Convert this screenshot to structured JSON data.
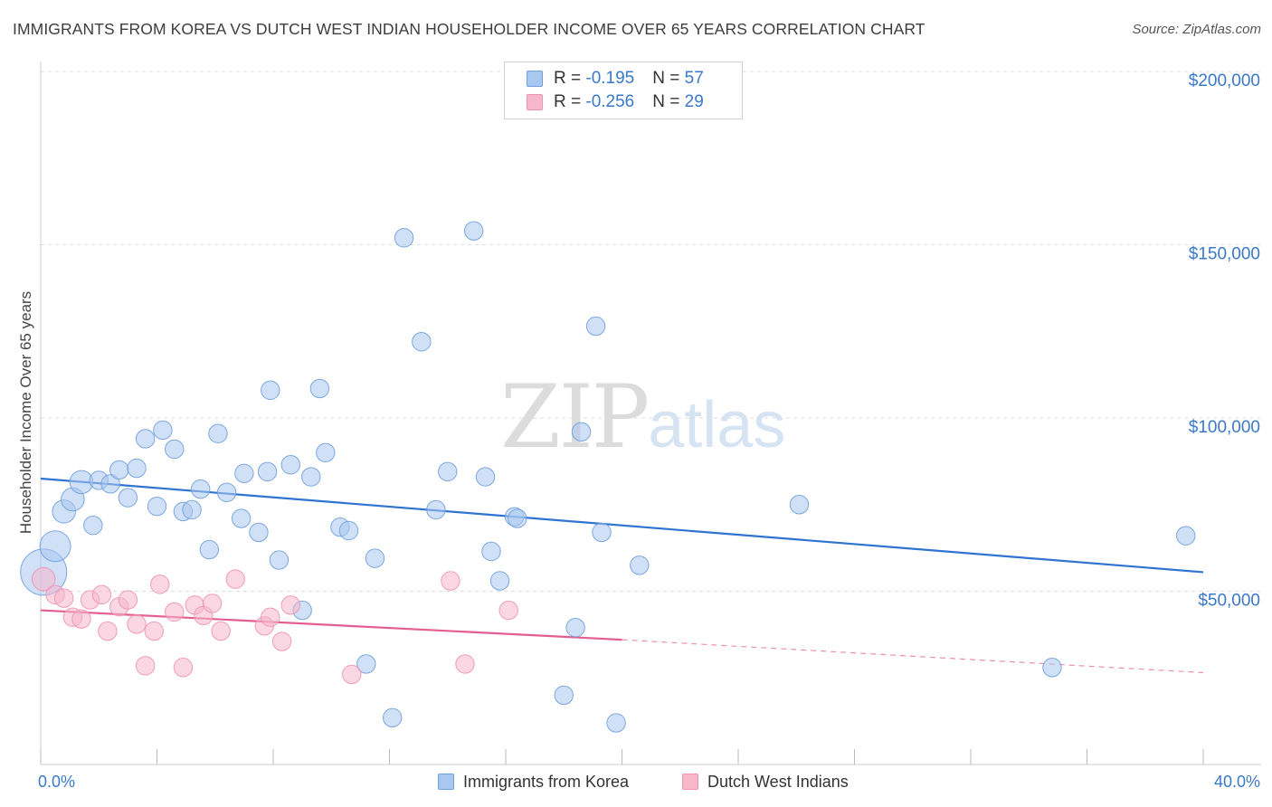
{
  "title": "IMMIGRANTS FROM KOREA VS DUTCH WEST INDIAN HOUSEHOLDER INCOME OVER 65 YEARS CORRELATION CHART",
  "source": "Source: ZipAtlas.com",
  "watermark": {
    "zip": "ZIP",
    "atlas": "atlas"
  },
  "legend": {
    "rows": [
      {
        "r_label": "R = ",
        "r_value": "-0.195",
        "n_label": "N = ",
        "n_value": "57",
        "color": "#a9c8f0"
      },
      {
        "r_label": "R = ",
        "r_value": "-0.256",
        "n_label": "N = ",
        "n_value": "29",
        "color": "#f6b7ca"
      }
    ]
  },
  "bottom_legend": {
    "korea": "Immigrants from Korea",
    "dutch": "Dutch West Indians"
  },
  "chart_data": {
    "type": "scatter",
    "title": "IMMIGRANTS FROM KOREA VS DUTCH WEST INDIAN HOUSEHOLDER INCOME OVER 65 YEARS CORRELATION CHART",
    "xlabel": "",
    "ylabel": "Householder Income Over 65 years",
    "xlim": [
      0,
      40
    ],
    "ylim": [
      0,
      200000
    ],
    "x_tick_labels": [
      "0.0%",
      "40.0%"
    ],
    "y_ticks": [
      50000,
      100000,
      150000,
      200000
    ],
    "y_tick_labels": [
      "$50,000",
      "$100,000",
      "$150,000",
      "$200,000"
    ],
    "grid": true,
    "legend_position": "top-center",
    "series": [
      {
        "name": "Immigrants from Korea",
        "color": "#a9c8f0",
        "edge": "#6f9fdc",
        "trend_color": "#2f74d0",
        "trend": {
          "x0": 0,
          "y0": 82500,
          "x1": 40,
          "y1": 55500
        },
        "points": [
          [
            0.1,
            55500,
            3
          ],
          [
            0.5,
            63000,
            2
          ],
          [
            0.8,
            73000,
            1.5
          ],
          [
            1.1,
            76500,
            1.5
          ],
          [
            1.4,
            81500,
            1.5
          ],
          [
            1.8,
            69000,
            1.2
          ],
          [
            2.0,
            82000,
            1.2
          ],
          [
            2.4,
            81000,
            1.2
          ],
          [
            2.7,
            85000,
            1.2
          ],
          [
            3.0,
            77000,
            1.2
          ],
          [
            3.3,
            85500,
            1.2
          ],
          [
            3.6,
            94000,
            1.2
          ],
          [
            4.0,
            74500,
            1.2
          ],
          [
            4.2,
            96500,
            1.2
          ],
          [
            4.6,
            91000,
            1.2
          ],
          [
            4.9,
            73000,
            1.2
          ],
          [
            5.2,
            73500,
            1.2
          ],
          [
            5.5,
            79500,
            1.2
          ],
          [
            5.8,
            62000,
            1.2
          ],
          [
            6.1,
            95500,
            1.2
          ],
          [
            6.4,
            78500,
            1.2
          ],
          [
            6.9,
            71000,
            1.2
          ],
          [
            7.0,
            84000,
            1.2
          ],
          [
            7.5,
            67000,
            1.2
          ],
          [
            7.8,
            84500,
            1.2
          ],
          [
            7.9,
            108000,
            1.2
          ],
          [
            8.2,
            59000,
            1.2
          ],
          [
            8.6,
            86500,
            1.2
          ],
          [
            9.0,
            44500,
            1.2
          ],
          [
            9.3,
            83000,
            1.2
          ],
          [
            9.6,
            108500,
            1.2
          ],
          [
            9.8,
            90000,
            1.2
          ],
          [
            10.3,
            68500,
            1.2
          ],
          [
            10.6,
            67500,
            1.2
          ],
          [
            11.2,
            29000,
            1.2
          ],
          [
            11.5,
            59500,
            1.2
          ],
          [
            12.1,
            13500,
            1.2
          ],
          [
            12.5,
            152000,
            1.2
          ],
          [
            13.1,
            122000,
            1.2
          ],
          [
            13.6,
            73500,
            1.2
          ],
          [
            14.0,
            84500,
            1.2
          ],
          [
            14.9,
            154000,
            1.2
          ],
          [
            15.3,
            83000,
            1.2
          ],
          [
            15.5,
            61500,
            1.2
          ],
          [
            15.8,
            53000,
            1.2
          ],
          [
            16.3,
            71500,
            1.2
          ],
          [
            16.4,
            71000,
            1.2
          ],
          [
            18.0,
            20000,
            1.2
          ],
          [
            18.4,
            39500,
            1.2
          ],
          [
            18.6,
            96000,
            1.2
          ],
          [
            19.1,
            126500,
            1.2
          ],
          [
            19.3,
            67000,
            1.2
          ],
          [
            19.8,
            12000,
            1.2
          ],
          [
            20.6,
            57500,
            1.2
          ],
          [
            26.1,
            75000,
            1.2
          ],
          [
            34.8,
            28000,
            1.2
          ],
          [
            39.4,
            66000,
            1.2
          ]
        ]
      },
      {
        "name": "Dutch West Indians",
        "color": "#f6b7ca",
        "edge": "#ee94b1",
        "trend_color": "#e35f92",
        "trend": {
          "x0": 0,
          "y0": 44500,
          "x1": 20,
          "y1": 36000,
          "x_dash_end": 40,
          "y_dash_end": 26500
        },
        "points": [
          [
            0.1,
            53500,
            1.5
          ],
          [
            0.5,
            49000,
            1.2
          ],
          [
            0.8,
            48000,
            1.2
          ],
          [
            1.1,
            42500,
            1.2
          ],
          [
            1.4,
            42000,
            1.2
          ],
          [
            1.7,
            47500,
            1.2
          ],
          [
            2.1,
            49000,
            1.2
          ],
          [
            2.3,
            38500,
            1.2
          ],
          [
            2.7,
            45500,
            1.2
          ],
          [
            3.0,
            47500,
            1.2
          ],
          [
            3.3,
            40500,
            1.2
          ],
          [
            3.6,
            28500,
            1.2
          ],
          [
            3.9,
            38500,
            1.2
          ],
          [
            4.1,
            52000,
            1.2
          ],
          [
            4.6,
            44000,
            1.2
          ],
          [
            4.9,
            28000,
            1.2
          ],
          [
            5.3,
            46000,
            1.2
          ],
          [
            5.6,
            43000,
            1.2
          ],
          [
            5.9,
            46500,
            1.2
          ],
          [
            6.2,
            38500,
            1.2
          ],
          [
            6.7,
            53500,
            1.2
          ],
          [
            7.7,
            40000,
            1.2
          ],
          [
            7.9,
            42500,
            1.2
          ],
          [
            8.3,
            35500,
            1.2
          ],
          [
            8.6,
            46000,
            1.2
          ],
          [
            10.7,
            26000,
            1.2
          ],
          [
            14.1,
            53000,
            1.2
          ],
          [
            14.6,
            29000,
            1.2
          ],
          [
            16.1,
            44500,
            1.2
          ]
        ]
      }
    ]
  }
}
